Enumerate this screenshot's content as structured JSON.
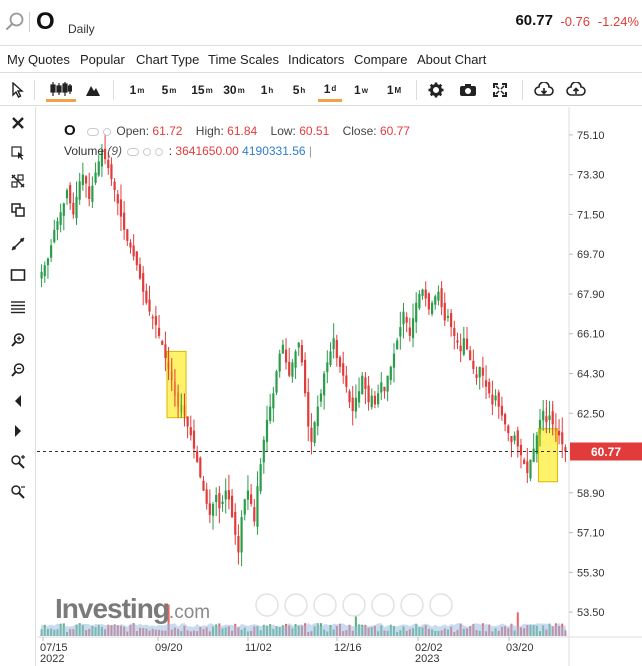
{
  "header": {
    "symbol": "O",
    "interval": "Daily",
    "price": "60.77",
    "change": "-0.76",
    "change_pct": "-1.24%"
  },
  "menu": [
    "My Quotes",
    "Popular",
    "Chart Type",
    "Time Scales",
    "Indicators",
    "Compare",
    "About Chart"
  ],
  "toolbar": {
    "intervals": [
      {
        "n": "1",
        "u": "m"
      },
      {
        "n": "5",
        "u": "m"
      },
      {
        "n": "15",
        "u": "m"
      },
      {
        "n": "30",
        "u": "m"
      },
      {
        "n": "1",
        "u": "h"
      },
      {
        "n": "5",
        "u": "h"
      },
      {
        "n": "1",
        "u": "d"
      },
      {
        "n": "1",
        "u": "w"
      },
      {
        "n": "1",
        "u": "M"
      }
    ],
    "active_interval": "1d"
  },
  "legend": {
    "symbol": "O",
    "open_label": "Open:",
    "open": "61.72",
    "high_label": "High:",
    "high": "61.84",
    "low_label": "Low:",
    "low": "60.51",
    "close_label": "Close:",
    "close": "60.77",
    "volume_label": "Volume",
    "volume_period": "(9)",
    "volume_value": "3641650.00",
    "volume_ma": "4190331.56"
  },
  "last_price_label": "60.77",
  "watermark": {
    "brand": "Investing",
    "suffix": ".com"
  },
  "colors": {
    "up": "#2a9d4a",
    "down": "#e23b3b",
    "accent": "#f0a24b",
    "highlight": "#ffee3a",
    "volume": "#9bbde3"
  },
  "chart_data": {
    "type": "candlestick",
    "y_ticks": [
      "75.10",
      "73.30",
      "71.50",
      "69.70",
      "67.90",
      "66.10",
      "64.30",
      "62.50",
      "60.70",
      "58.90",
      "57.10",
      "55.30",
      "53.50"
    ],
    "ylim": [
      52.6,
      76.0
    ],
    "x_ticks": [
      {
        "label": "07/15",
        "sub": "2022"
      },
      {
        "label": "09/20",
        "sub": ""
      },
      {
        "label": "11/02",
        "sub": ""
      },
      {
        "label": "12/16",
        "sub": ""
      },
      {
        "label": "02/02",
        "sub": "2023"
      },
      {
        "label": "03/20",
        "sub": ""
      }
    ],
    "close": [
      68.9,
      69.2,
      69.5,
      70.1,
      70.8,
      71.2,
      71.6,
      72.0,
      72.6,
      72.0,
      71.5,
      72.3,
      73.0,
      73.3,
      72.9,
      72.2,
      72.8,
      73.4,
      73.9,
      74.4,
      74.0,
      73.6,
      73.1,
      72.6,
      72.0,
      71.4,
      70.8,
      70.3,
      70.0,
      69.6,
      69.2,
      68.6,
      68.0,
      67.5,
      67.1,
      66.8,
      66.5,
      66.0,
      65.6,
      65.0,
      64.5,
      64.0,
      63.3,
      62.8,
      62.9,
      62.4,
      61.9,
      61.5,
      60.9,
      60.3,
      59.6,
      59.0,
      58.4,
      57.9,
      58.4,
      58.8,
      58.2,
      58.5,
      59.0,
      58.6,
      57.8,
      57.0,
      56.2,
      57.8,
      58.6,
      59.0,
      58.4,
      57.6,
      59.2,
      60.2,
      61.3,
      62.2,
      62.8,
      63.4,
      64.4,
      65.2,
      65.6,
      64.8,
      64.2,
      64.8,
      65.3,
      65.7,
      64.8,
      63.4,
      61.9,
      61.2,
      62.1,
      62.8,
      63.4,
      64.3,
      64.8,
      65.3,
      65.9,
      65.0,
      64.6,
      64.2,
      63.7,
      63.0,
      62.6,
      63.2,
      63.5,
      64.2,
      63.6,
      63.0,
      63.3,
      62.9,
      63.4,
      63.9,
      63.5,
      64.2,
      64.6,
      65.2,
      65.8,
      66.4,
      67.1,
      66.6,
      66.0,
      66.8,
      67.5,
      67.9,
      68.1,
      67.7,
      67.2,
      67.5,
      67.8,
      68.0,
      67.3,
      66.7,
      66.9,
      66.4,
      66.0,
      65.7,
      65.3,
      65.9,
      65.4,
      64.9,
      64.5,
      64.1,
      64.6,
      64.2,
      63.7,
      63.4,
      62.9,
      63.3,
      62.8,
      62.4,
      62.0,
      61.6,
      61.2,
      61.5,
      61.0,
      60.6,
      60.2,
      59.8,
      60.4,
      60.9,
      61.5,
      62.2,
      62.6,
      62.1,
      62.4,
      62.0,
      61.7,
      61.5,
      61.1,
      60.77
    ]
  }
}
